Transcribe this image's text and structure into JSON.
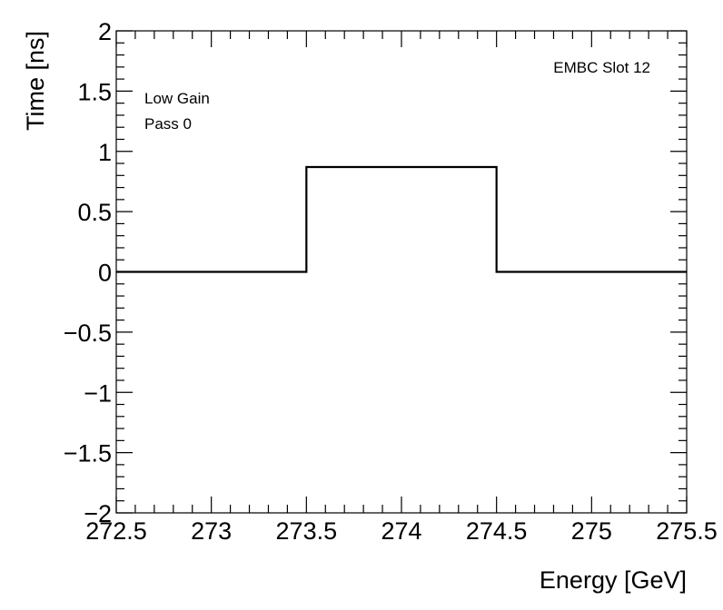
{
  "chart_data": {
    "type": "line",
    "title": "",
    "xlabel": "Energy [GeV]",
    "ylabel": "Time [ns]",
    "xlim": [
      272.5,
      275.5
    ],
    "ylim": [
      -2,
      2
    ],
    "x_ticks": [
      {
        "value": 272.5,
        "label": "272.5"
      },
      {
        "value": 273,
        "label": "273"
      },
      {
        "value": 273.5,
        "label": "273.5"
      },
      {
        "value": 274,
        "label": "274"
      },
      {
        "value": 274.5,
        "label": "274.5"
      },
      {
        "value": 275,
        "label": "275"
      },
      {
        "value": 275.5,
        "label": "275.5"
      }
    ],
    "y_ticks": [
      {
        "value": 2,
        "label": "2"
      },
      {
        "value": 1.5,
        "label": "1.5"
      },
      {
        "value": 1,
        "label": "1"
      },
      {
        "value": 0.5,
        "label": "0.5"
      },
      {
        "value": 0,
        "label": "0"
      },
      {
        "value": -0.5,
        "label": "−0.5"
      },
      {
        "value": -1,
        "label": "−1"
      },
      {
        "value": -1.5,
        "label": "−1.5"
      },
      {
        "value": -2,
        "label": "−2"
      }
    ],
    "grid": false,
    "legend": "none",
    "series": [
      {
        "style": "histogram-step",
        "color": "#000000",
        "bins": [
          {
            "x_low": 272.5,
            "x_high": 273.5,
            "y": 0
          },
          {
            "x_low": 273.5,
            "x_high": 274.5,
            "y": 0.87
          },
          {
            "x_low": 274.5,
            "x_high": 275.5,
            "y": 0
          }
        ]
      }
    ],
    "annotations": {
      "gain": "Low Gain",
      "pass": "Pass 0",
      "slot": "EMBC Slot 12"
    }
  }
}
